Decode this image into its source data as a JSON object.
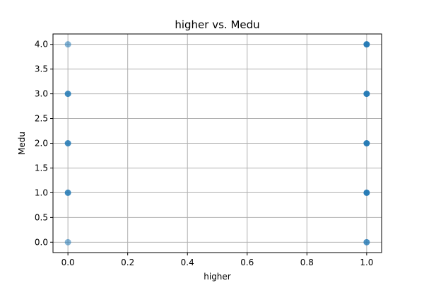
{
  "chart_data": {
    "type": "scatter",
    "title": "higher vs. Medu",
    "xlabel": "higher",
    "ylabel": "Medu",
    "xlim": [
      -0.05,
      1.05
    ],
    "ylim": [
      -0.21,
      4.21
    ],
    "xticks": [
      "0.0",
      "0.2",
      "0.4",
      "0.6",
      "0.8",
      "1.0"
    ],
    "yticks": [
      "0.0",
      "0.5",
      "1.0",
      "1.5",
      "2.0",
      "2.5",
      "3.0",
      "3.5",
      "4.0"
    ],
    "grid": true,
    "marker_color": "#1f77b4",
    "series": [
      {
        "points": [
          {
            "x": 0,
            "y": 0,
            "alpha": 0.55
          },
          {
            "x": 0,
            "y": 1,
            "alpha": 0.85
          },
          {
            "x": 0,
            "y": 2,
            "alpha": 0.85
          },
          {
            "x": 0,
            "y": 3,
            "alpha": 0.85
          },
          {
            "x": 0,
            "y": 4,
            "alpha": 0.55
          },
          {
            "x": 1,
            "y": 0,
            "alpha": 0.8
          },
          {
            "x": 1,
            "y": 1,
            "alpha": 0.95
          },
          {
            "x": 1,
            "y": 2,
            "alpha": 0.95
          },
          {
            "x": 1,
            "y": 3,
            "alpha": 0.95
          },
          {
            "x": 1,
            "y": 4,
            "alpha": 0.95
          }
        ]
      }
    ]
  }
}
